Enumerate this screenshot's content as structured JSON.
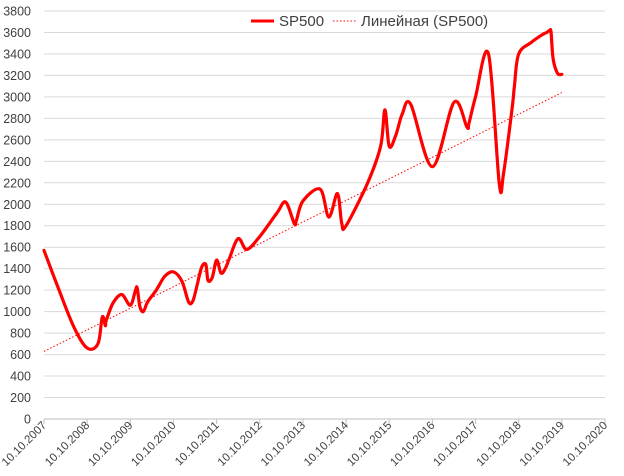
{
  "chart_data": {
    "type": "line",
    "ylim": [
      0,
      3800
    ],
    "y_ticks": [
      "0",
      "200",
      "400",
      "600",
      "800",
      "1000",
      "1200",
      "1400",
      "1600",
      "1800",
      "2000",
      "2200",
      "2400",
      "2600",
      "2800",
      "3000",
      "3200",
      "3400",
      "3600",
      "3800"
    ],
    "x_tick_labels": [
      "10.10.2007",
      "10.10.2008",
      "10.10.2009",
      "10.10.2010",
      "10.10.2011",
      "10.10.2012",
      "10.10.2013",
      "10.10.2014",
      "10.10.2015",
      "10.10.2016",
      "10.10.2017",
      "10.10.2018",
      "10.10.2019",
      "10.10.2020"
    ],
    "grid": true,
    "legend_position": "top-right",
    "series": [
      {
        "name": "SP500",
        "color": "#ff0000",
        "style": "solid",
        "x": [
          0.0,
          0.35,
          0.7,
          1.0,
          1.25,
          1.35,
          1.42,
          1.43,
          1.47,
          1.6,
          1.8,
          2.0,
          2.12,
          2.16,
          2.22,
          2.28,
          2.33,
          2.4,
          2.6,
          2.8,
          3.0,
          3.2,
          3.35,
          3.45,
          3.55,
          3.65,
          3.75,
          3.8,
          3.9,
          4.0,
          4.1,
          4.2,
          4.3,
          4.5,
          4.7,
          5.0,
          5.4,
          5.6,
          5.8,
          5.85,
          6.0,
          6.4,
          6.6,
          6.8,
          6.9,
          7.0,
          7.5,
          7.8,
          7.9,
          8.0,
          8.15,
          8.3,
          8.5,
          9.0,
          9.5,
          9.8,
          9.85,
          10.0,
          10.3,
          10.55,
          10.65,
          10.85,
          10.9,
          11.0,
          11.3,
          11.55,
          11.65,
          11.72,
          11.75,
          11.8,
          11.9,
          12.0
        ],
        "y": [
          1570,
          1200,
          850,
          660,
          700,
          950,
          870,
          900,
          950,
          1080,
          1160,
          1060,
          1200,
          1220,
          1050,
          1000,
          1020,
          1090,
          1200,
          1330,
          1370,
          1280,
          1090,
          1100,
          1250,
          1410,
          1440,
          1290,
          1320,
          1480,
          1360,
          1400,
          1500,
          1680,
          1580,
          1700,
          1920,
          2020,
          1820,
          1850,
          2030,
          2140,
          1880,
          2100,
          1820,
          1800,
          2200,
          2540,
          2880,
          2540,
          2640,
          2840,
          2930,
          2350,
          2950,
          2720,
          2760,
          3000,
          3400,
          2190,
          2290,
          2900,
          3100,
          3400,
          3510,
          3580,
          3600,
          3620,
          3600,
          3350,
          3220,
          3210
        ]
      },
      {
        "name": "Линейная (SP500)",
        "color": "#ff0000",
        "style": "dotted",
        "x": [
          0,
          12
        ],
        "y": [
          630,
          3040
        ]
      }
    ]
  }
}
